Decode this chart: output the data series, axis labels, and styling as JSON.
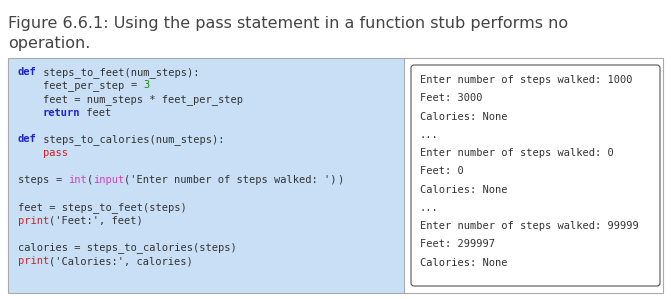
{
  "title_line1": "Figure 6.6.1: Using the pass statement in a function stub performs no",
  "title_line2": "operation.",
  "title_color": "#444444",
  "title_fontsize": 11.5,
  "bg_color": "#ffffff",
  "code_bg": "#c8dff5",
  "border_color": "#aaaaaa",
  "code_lines": [
    [
      {
        "t": "def",
        "color": "#2222cc",
        "bold": true
      },
      {
        "t": " steps_to_feet(num_steps):",
        "color": "#333333",
        "bold": false
      }
    ],
    [
      {
        "t": "    feet_per_step ",
        "color": "#333333",
        "bold": false
      },
      {
        "t": "=",
        "color": "#333333",
        "bold": false
      },
      {
        "t": " ",
        "color": "#333333",
        "bold": false
      },
      {
        "t": "3",
        "color": "#228800",
        "bold": false
      }
    ],
    [
      {
        "t": "    feet = num_steps * feet_per_step",
        "color": "#333333",
        "bold": false
      }
    ],
    [
      {
        "t": "    ",
        "color": "#333333",
        "bold": false
      },
      {
        "t": "return",
        "color": "#2222cc",
        "bold": true
      },
      {
        "t": " feet",
        "color": "#333333",
        "bold": false
      }
    ],
    [],
    [
      {
        "t": "def",
        "color": "#2222cc",
        "bold": true
      },
      {
        "t": " steps_to_calories(num_steps):",
        "color": "#333333",
        "bold": false
      }
    ],
    [
      {
        "t": "    ",
        "color": "#333333",
        "bold": false
      },
      {
        "t": "pass",
        "color": "#cc2222",
        "bold": false
      }
    ],
    [],
    [
      {
        "t": "steps ",
        "color": "#333333",
        "bold": false
      },
      {
        "t": "= ",
        "color": "#333333",
        "bold": false
      },
      {
        "t": "int",
        "color": "#cc44bb",
        "bold": false
      },
      {
        "t": "(",
        "color": "#333333",
        "bold": false
      },
      {
        "t": "input",
        "color": "#cc44bb",
        "bold": false
      },
      {
        "t": "('Enter number of steps walked: ')",
        "color": "#333333",
        "bold": false
      },
      {
        "t": ")",
        "color": "#333333",
        "bold": false
      }
    ],
    [],
    [
      {
        "t": "feet = steps_to_feet(steps)",
        "color": "#333333",
        "bold": false
      }
    ],
    [
      {
        "t": "print",
        "color": "#cc2222",
        "bold": false
      },
      {
        "t": "('Feet:', feet)",
        "color": "#333333",
        "bold": false
      }
    ],
    [],
    [
      {
        "t": "calories = steps_to_calories(steps)",
        "color": "#333333",
        "bold": false
      }
    ],
    [
      {
        "t": "print",
        "color": "#cc2222",
        "bold": false
      },
      {
        "t": "('Calories:', calories)",
        "color": "#333333",
        "bold": false
      }
    ]
  ],
  "output_lines": [
    "Enter number of steps walked: 1000",
    "Feet: 3000",
    "Calories: None",
    "...",
    "Enter number of steps walked: 0",
    "Feet: 0",
    "Calories: None",
    "...",
    "Enter number of steps walked: 99999",
    "Feet: 299997",
    "Calories: None"
  ],
  "code_font_size": 7.5,
  "output_font_size": 7.5
}
